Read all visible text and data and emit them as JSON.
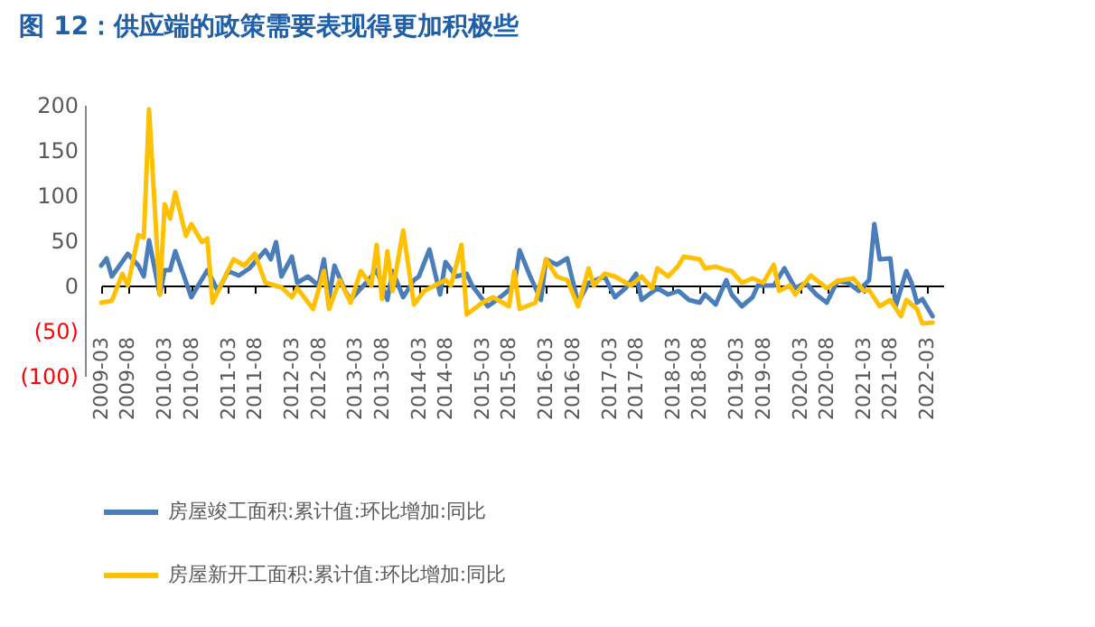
{
  "chart_data": {
    "type": "line",
    "title": "图 12：供应端的政策需要表现得更加积极些",
    "ylim": [
      -100,
      200
    ],
    "yticks": [
      {
        "value": -100,
        "label": "(100)"
      },
      {
        "value": -50,
        "label": "(50)"
      },
      0,
      50,
      100,
      150,
      200
    ],
    "xlim": [
      "2009-03",
      "2022-06"
    ],
    "xticks": [
      "2009-03",
      "2009-08",
      "2010-03",
      "2010-08",
      "2011-03",
      "2011-08",
      "2012-03",
      "2012-08",
      "2013-03",
      "2013-08",
      "2014-03",
      "2014-08",
      "2015-03",
      "2015-08",
      "2016-03",
      "2016-08",
      "2017-03",
      "2017-08",
      "2018-03",
      "2018-08",
      "2019-03",
      "2019-08",
      "2020-03",
      "2020-08",
      "2021-03",
      "2021-08",
      "2022-03"
    ],
    "grid": false,
    "legend": "bottom",
    "marker": "none",
    "line_style": "solid",
    "series": [
      {
        "name": "房屋竣工面积:累计值:环比增加:同比",
        "color": "#4a7ebb",
        "x": [
          "2009-03",
          "2009-04",
          "2009-05",
          "2009-08",
          "2009-10",
          "2009-11",
          "2009-12",
          "2010-02",
          "2010-03",
          "2010-04",
          "2010-05",
          "2010-08",
          "2010-11",
          "2011-01",
          "2011-03",
          "2011-05",
          "2011-07",
          "2011-10",
          "2011-11",
          "2011-12",
          "2012-01",
          "2012-03",
          "2012-04",
          "2012-06",
          "2012-08",
          "2012-09",
          "2012-10",
          "2012-11",
          "2013-01",
          "2013-02",
          "2013-05",
          "2013-07",
          "2013-09",
          "2013-10",
          "2013-12",
          "2014-02",
          "2014-03",
          "2014-05",
          "2014-07",
          "2014-08",
          "2014-10",
          "2014-12",
          "2015-01",
          "2015-04",
          "2015-05",
          "2015-07",
          "2015-09",
          "2015-10",
          "2015-12",
          "2016-02",
          "2016-03",
          "2016-05",
          "2016-07",
          "2016-09",
          "2016-11",
          "2017-02",
          "2017-04",
          "2017-06",
          "2017-08",
          "2017-09",
          "2017-12",
          "2018-02",
          "2018-04",
          "2018-06",
          "2018-08",
          "2018-09",
          "2018-11",
          "2019-01",
          "2019-02",
          "2019-04",
          "2019-06",
          "2019-07",
          "2019-10",
          "2019-12",
          "2020-02",
          "2020-04",
          "2020-06",
          "2020-08",
          "2020-10",
          "2020-12",
          "2021-02",
          "2021-04",
          "2021-05",
          "2021-06",
          "2021-08",
          "2021-09",
          "2021-11",
          "2021-12",
          "2022-01",
          "2022-02",
          "2022-04"
        ],
        "values": [
          22,
          30,
          10,
          35,
          22,
          10,
          50,
          -10,
          17,
          17,
          38,
          -13,
          17,
          -6,
          16,
          11,
          19,
          39,
          29,
          48,
          10,
          32,
          3,
          10,
          0,
          29,
          -13,
          22,
          -6,
          -16,
          3,
          17,
          -16,
          16,
          -13,
          6,
          10,
          40,
          -10,
          26,
          10,
          13,
          0,
          -23,
          -19,
          -10,
          0,
          39,
          10,
          -16,
          29,
          23,
          30,
          -19,
          3,
          10,
          -13,
          -3,
          13,
          -16,
          -3,
          -10,
          -6,
          -16,
          -19,
          -10,
          -21,
          6,
          -10,
          -23,
          -13,
          0,
          0,
          19,
          -3,
          3,
          -10,
          -19,
          5,
          3,
          -6,
          6,
          68,
          29,
          30,
          -23,
          16,
          3,
          -19,
          -15,
          -34
        ]
      },
      {
        "name": "房屋新开工面积:累计值:环比增加:同比",
        "color": "#ffc000",
        "x": [
          "2009-03",
          "2009-05",
          "2009-07",
          "2009-08",
          "2009-10",
          "2009-11",
          "2009-12",
          "2010-02",
          "2010-03",
          "2010-04",
          "2010-05",
          "2010-07",
          "2010-08",
          "2010-10",
          "2010-11",
          "2010-12",
          "2011-03",
          "2011-04",
          "2011-06",
          "2011-08",
          "2011-10",
          "2012-01",
          "2012-03",
          "2012-04",
          "2012-07",
          "2012-09",
          "2012-10",
          "2012-12",
          "2013-02",
          "2013-04",
          "2013-06",
          "2013-07",
          "2013-08",
          "2013-09",
          "2013-10",
          "2013-12",
          "2014-02",
          "2014-04",
          "2014-06",
          "2014-08",
          "2014-09",
          "2014-11",
          "2014-12",
          "2015-03",
          "2015-05",
          "2015-08",
          "2015-09",
          "2015-10",
          "2016-01",
          "2016-03",
          "2016-05",
          "2016-07",
          "2016-09",
          "2016-11",
          "2016-12",
          "2017-02",
          "2017-04",
          "2017-07",
          "2017-09",
          "2017-11",
          "2017-12",
          "2018-02",
          "2018-04",
          "2018-05",
          "2018-08",
          "2018-09",
          "2018-11",
          "2019-01",
          "2019-02",
          "2019-04",
          "2019-06",
          "2019-08",
          "2019-10",
          "2019-11",
          "2020-01",
          "2020-02",
          "2020-05",
          "2020-08",
          "2020-10",
          "2021-01",
          "2021-03",
          "2021-04",
          "2021-06",
          "2021-08",
          "2021-10",
          "2021-11",
          "2022-01",
          "2022-02",
          "2022-04"
        ],
        "values": [
          -19,
          -17,
          13,
          0,
          56,
          53,
          195,
          -10,
          90,
          74,
          103,
          55,
          68,
          48,
          52,
          -19,
          17,
          29,
          22,
          35,
          3,
          -2,
          -13,
          -3,
          -26,
          16,
          -26,
          6,
          -19,
          16,
          0,
          45,
          -15,
          38,
          -6,
          61,
          -21,
          -6,
          0,
          6,
          0,
          45,
          -32,
          -19,
          -13,
          -23,
          16,
          -26,
          -19,
          29,
          10,
          6,
          -23,
          19,
          0,
          13,
          10,
          0,
          10,
          -3,
          19,
          10,
          22,
          32,
          29,
          19,
          21,
          17,
          16,
          3,
          8,
          3,
          23,
          -6,
          0,
          -10,
          11,
          -3,
          5,
          8,
          -6,
          -5,
          -23,
          -16,
          -34,
          -16,
          -26,
          -42,
          -41
        ]
      }
    ]
  }
}
